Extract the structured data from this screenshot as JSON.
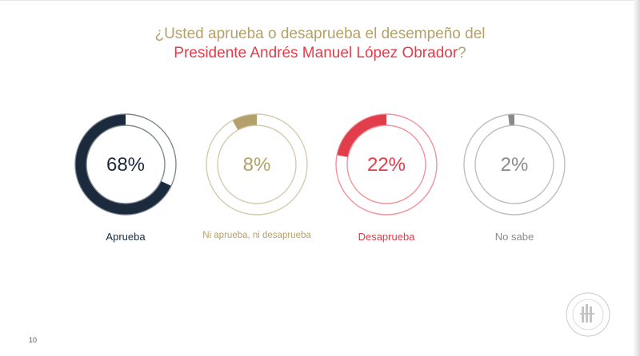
{
  "title": {
    "line1": "¿Usted aprueba o desaprueba el desempeño del",
    "line2_emphasis": "Presidente Andrés Manuel López Obrador",
    "line2_end": "?"
  },
  "page_number": "10",
  "chart_data": {
    "type": "pie",
    "series": [
      {
        "name": "Aprueba",
        "value": 68,
        "label": "68%",
        "color": "#1b2a3d"
      },
      {
        "name": "Ni aprueba, ni desaprueba",
        "value": 8,
        "label": "8%",
        "color": "#b4a06a"
      },
      {
        "name": "Desaprueba",
        "value": 22,
        "label": "22%",
        "color": "#e23d4b"
      },
      {
        "name": "No sabe",
        "value": 2,
        "label": "2%",
        "color": "#8a8a8a"
      }
    ]
  }
}
